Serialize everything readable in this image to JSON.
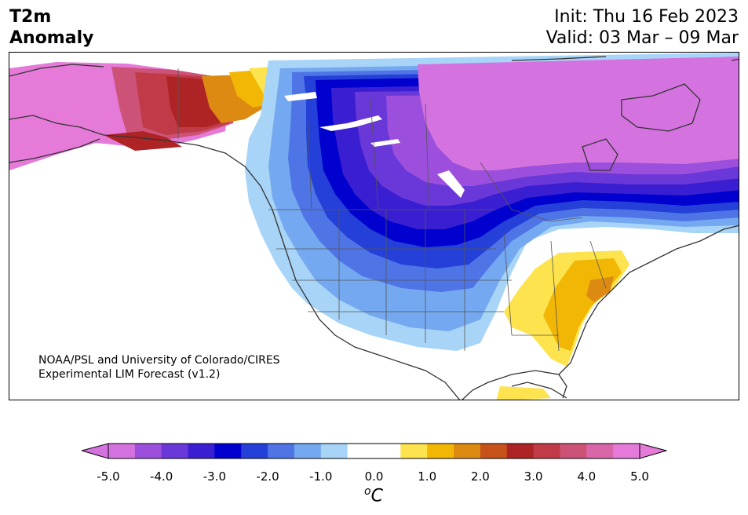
{
  "header": {
    "title_line1": "T2m",
    "title_line2": "Anomaly",
    "init": "Init: Thu 16 Feb 2023",
    "valid": "Valid: 03 Mar – 09 Mar"
  },
  "credit": {
    "line1": "NOAA/PSL and University of Colorado/CIRES",
    "line2": "Experimental LIM Forecast (v1.2)"
  },
  "colorbar": {
    "units": "oC",
    "tick_labels": [
      "-5.0",
      "-4.0",
      "-3.0",
      "-2.0",
      "-1.0",
      "0.0",
      "1.0",
      "2.0",
      "3.0",
      "4.0",
      "5.0"
    ],
    "colors": [
      "#d473e0",
      "#9b4fdc",
      "#6a37d8",
      "#3a1fd2",
      "#0000cf",
      "#2440d8",
      "#4e74e6",
      "#74a8f0",
      "#a8d4f7",
      "#ffffff",
      "#ffffff",
      "#fde34d",
      "#f2b705",
      "#dd8a12",
      "#c7521a",
      "#ae2425",
      "#c03a47",
      "#cd5278",
      "#d966a8",
      "#e57ad8"
    ],
    "under_color": "#d473e0",
    "over_color": "#e57ad8"
  },
  "map": {
    "projection": "North America regional",
    "features": [
      "coastlines",
      "country borders",
      "state borders",
      "lakes"
    ]
  }
}
